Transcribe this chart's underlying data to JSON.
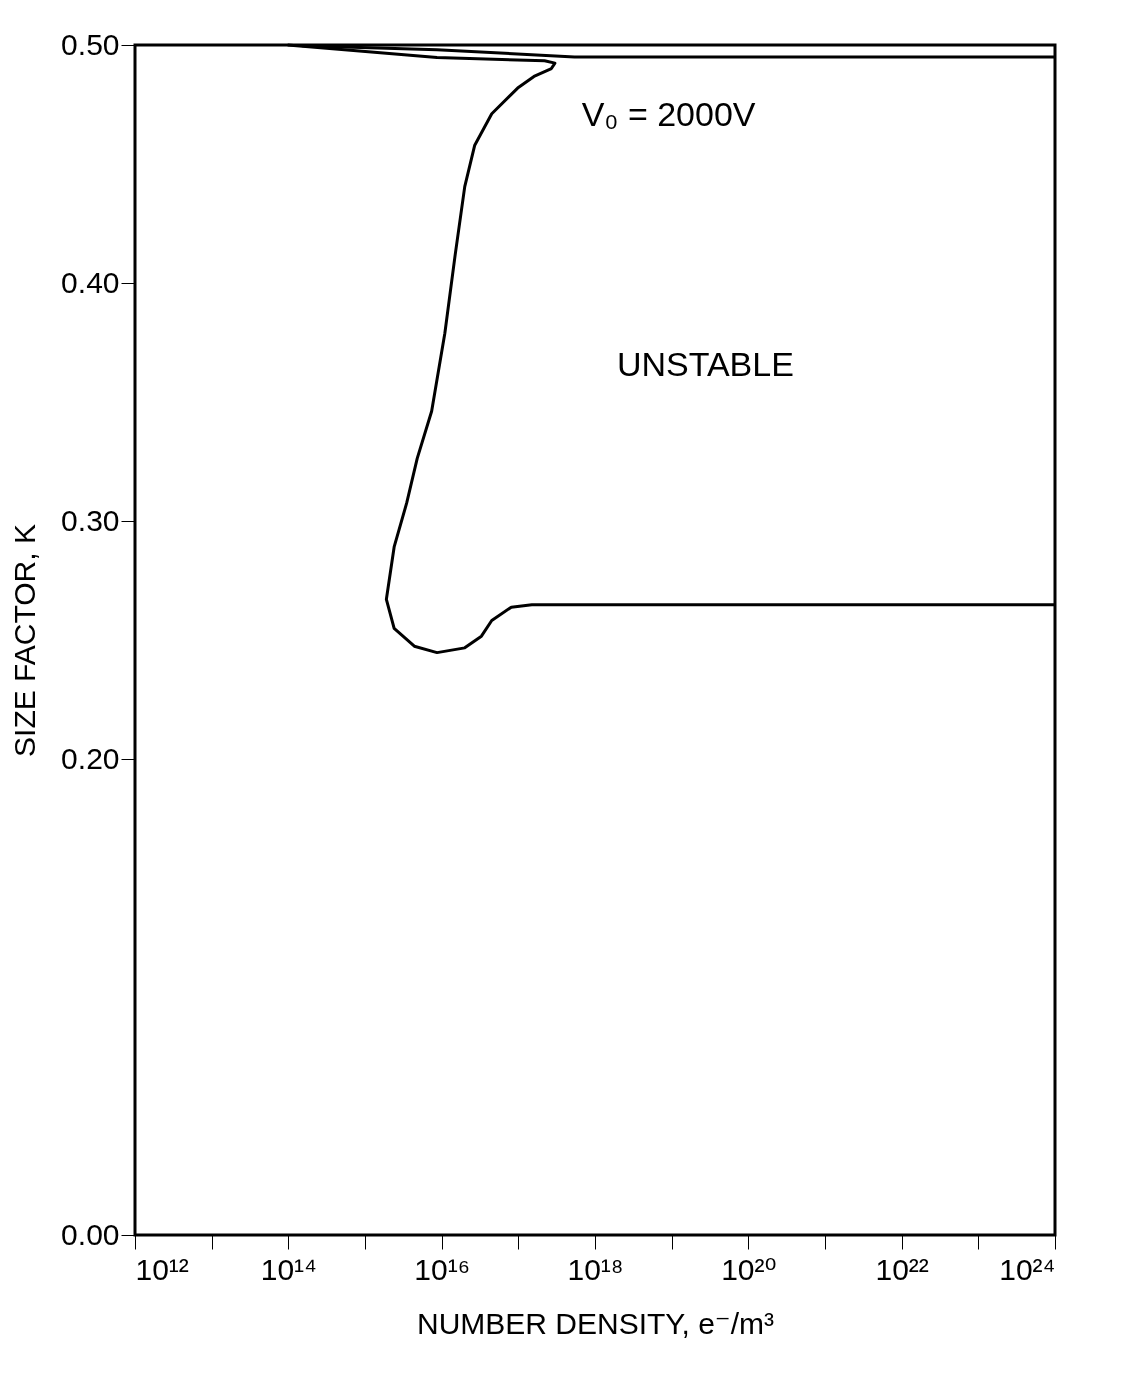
{
  "chart_data": {
    "type": "line",
    "xlabel": "NUMBER DENSITY, e⁻/m³",
    "ylabel": "SIZE FACTOR, K",
    "log": "x",
    "grid": false,
    "marker": "none",
    "line_style": "solid",
    "xlim": [
      1000000000000.0,
      1e+24
    ],
    "ylim": [
      0,
      0.5
    ],
    "xticks": [
      {
        "value": 1000000000000.0,
        "label": "10¹²"
      },
      {
        "value": 10000000000000.0,
        "label": null
      },
      {
        "value": 100000000000000.0,
        "label": "10¹⁴"
      },
      {
        "value": 1000000000000000.0,
        "label": null
      },
      {
        "value": 1e+16,
        "label": "10¹⁶"
      },
      {
        "value": 1e+17,
        "label": null
      },
      {
        "value": 1e+18,
        "label": "10¹⁸"
      },
      {
        "value": 1e+19,
        "label": null
      },
      {
        "value": 1e+20,
        "label": "10²⁰"
      },
      {
        "value": 1e+21,
        "label": null
      },
      {
        "value": 1e+22,
        "label": "10²²"
      },
      {
        "value": 1e+23,
        "label": null
      },
      {
        "value": 1e+24,
        "label": "10²⁴"
      }
    ],
    "yticks": [
      {
        "value": 0,
        "label": "0.00"
      },
      {
        "value": 0.2,
        "label": "0.20"
      },
      {
        "value": 0.3,
        "label": "0.30"
      },
      {
        "value": 0.4,
        "label": "0.40"
      },
      {
        "value": 0.5,
        "label": "0.50"
      }
    ],
    "series": [
      {
        "color": "#000000",
        "x": [
          98000000000000.0,
          8700000000000000.0,
          2.2e+17,
          3e+17,
          2.7e+17,
          1.6e+17,
          9.8e+16,
          4.5e+16,
          2.7e+16,
          2e+16,
          1.5e+16,
          1.1e+16,
          7400000000000000.0,
          4800000000000000.0,
          3500000000000000.0,
          2400000000000000.0,
          1900000000000000.0,
          2400000000000000.0,
          4400000000000000.0,
          8700000000000000.0,
          2e+16,
          3.3e+16,
          4.5e+16,
          8.1e+16,
          1.5e+17,
          1e+24
        ],
        "values": [
          0.5,
          0.4947,
          0.4934,
          0.4924,
          0.4901,
          0.4868,
          0.4819,
          0.4711,
          0.4579,
          0.4405,
          0.4118,
          0.3789,
          0.3461,
          0.3263,
          0.3076,
          0.2891,
          0.2671,
          0.2549,
          0.2474,
          0.2447,
          0.2467,
          0.2516,
          0.2582,
          0.2638,
          0.2648,
          0.2648
        ]
      },
      {
        "color": "#000000",
        "x": [
          1e+24,
          5.4e+17,
          8700000000000000.0,
          150000000000000.0
        ],
        "values": [
          0.495,
          0.495,
          0.498,
          0.4997
        ]
      }
    ],
    "annotations": [
      "V₀ = 2000V",
      "UNSTABLE"
    ]
  }
}
